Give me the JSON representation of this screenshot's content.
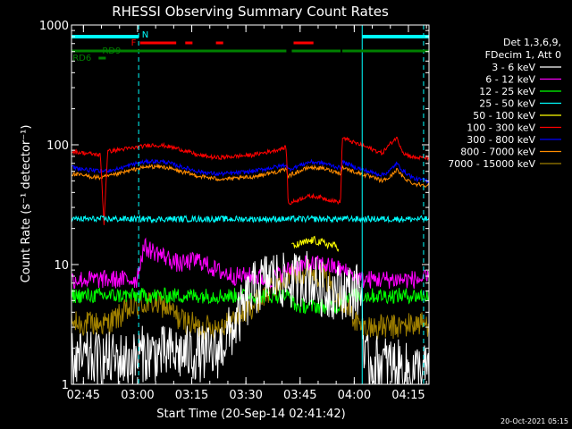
{
  "chart_data": {
    "type": "line",
    "title": "RHESSI Observing Summary Count Rates",
    "xlabel": "Start Time (20-Sep-14 02:41:42)",
    "ylabel": "Count Rate (s⁻¹ detector⁻¹)",
    "yscale": "log",
    "ylim": [
      1,
      1000
    ],
    "xlim_minutes": [
      0,
      99
    ],
    "x_ticks": [
      "02:45",
      "03:00",
      "03:15",
      "03:30",
      "03:45",
      "04:00",
      "04:15"
    ],
    "y_ticks": [
      "1",
      "10",
      "100",
      "1000"
    ],
    "legend_header": [
      "Det 1,3,6,9,",
      "FDecim 1, Att 0"
    ],
    "timestamp": "20-Oct-2021 05:15",
    "flags": {
      "N": {
        "label": "N",
        "color": "#00ffff",
        "segments": [
          [
            0,
            18.6
          ],
          [
            80.5,
            99
          ]
        ]
      },
      "F": {
        "label": "F",
        "color": "#ff0000",
        "segments": [
          [
            19,
            29
          ],
          [
            31.5,
            33.5
          ],
          [
            40,
            42
          ],
          [
            61.5,
            67
          ]
        ]
      },
      "RD6": {
        "label": "RD6",
        "color": "#008000",
        "segments": [
          [
            7.5,
            9.5
          ]
        ]
      },
      "RD9": {
        "label": "RD9",
        "color": "#008000",
        "segments": [
          [
            0,
            59.5
          ],
          [
            61,
            74.5
          ],
          [
            75,
            99
          ]
        ]
      }
    },
    "series": [
      {
        "name": "3 - 6 keV",
        "color": "#ffffff",
        "x": [
          0,
          18,
          18.6,
          40,
          45,
          50,
          55,
          60,
          65,
          70,
          80.5,
          81,
          88,
          92,
          99
        ],
        "y": [
          1.6,
          1.6,
          1.8,
          1.8,
          3,
          6,
          8,
          7,
          8,
          6,
          6,
          1.5,
          1.5,
          1.3,
          1.3
        ]
      },
      {
        "name": "6 - 12 keV",
        "color": "#ff00ff",
        "x": [
          0,
          10,
          18,
          20,
          25,
          30,
          35,
          40,
          45,
          50,
          55,
          60,
          65,
          70,
          75,
          80,
          85,
          90,
          95,
          99
        ],
        "y": [
          7.5,
          7.5,
          7.5,
          14,
          12,
          10,
          11,
          9,
          8,
          8,
          7.5,
          9,
          10,
          10,
          9,
          7.5,
          7.5,
          7.5,
          7.5,
          7.5
        ]
      },
      {
        "name": "12 - 25 keV",
        "color": "#00ff00",
        "x": [
          0,
          18,
          25,
          40,
          55,
          60,
          62,
          74,
          75,
          80,
          90,
          99
        ],
        "y": [
          5.5,
          5.5,
          5.5,
          5.5,
          5.5,
          5.5,
          4.5,
          4.5,
          5.5,
          5.5,
          5.5,
          5.5
        ]
      },
      {
        "name": "25 - 50 keV",
        "color": "#00ffff",
        "x": [
          0,
          8,
          10,
          20,
          30,
          40,
          50,
          60,
          70,
          75,
          80,
          90,
          99
        ],
        "y": [
          24,
          24,
          24,
          24,
          24,
          24,
          24,
          24,
          24,
          24,
          24,
          24,
          24
        ]
      },
      {
        "name": "50 - 100 keV",
        "color": "#ffff00",
        "x": [
          61,
          64,
          67,
          70,
          74
        ],
        "y": [
          14,
          15,
          16,
          15,
          14
        ]
      },
      {
        "name": "100 - 300 keV",
        "color": "#ff0000",
        "x": [
          0,
          4,
          8,
          9,
          10,
          12,
          18,
          22,
          26,
          30,
          35,
          40,
          45,
          50,
          55,
          59.5,
          60,
          62,
          65,
          68,
          71,
          74.5,
          75,
          78,
          82,
          86,
          88,
          90,
          92,
          95,
          99
        ],
        "y": [
          88,
          85,
          82,
          22,
          88,
          90,
          95,
          100,
          98,
          92,
          82,
          78,
          80,
          82,
          88,
          95,
          32,
          34,
          37,
          37,
          35,
          33,
          115,
          105,
          95,
          85,
          100,
          115,
          85,
          78,
          78
        ]
      },
      {
        "name": "300 - 800 keV",
        "color": "#0000ff",
        "x": [
          0,
          4,
          8,
          12,
          18,
          22,
          26,
          30,
          35,
          40,
          45,
          50,
          55,
          59.5,
          60,
          63,
          66,
          70,
          74.5,
          75,
          78,
          82,
          86,
          88,
          90,
          92,
          95,
          99
        ],
        "y": [
          65,
          62,
          60,
          62,
          70,
          73,
          72,
          66,
          60,
          57,
          58,
          60,
          64,
          68,
          62,
          67,
          72,
          70,
          64,
          72,
          66,
          60,
          56,
          60,
          70,
          60,
          52,
          50
        ]
      },
      {
        "name": "800 - 7000 keV",
        "color": "#ff8c00",
        "x": [
          0,
          4,
          8,
          12,
          18,
          22,
          26,
          30,
          35,
          40,
          45,
          50,
          55,
          59.5,
          60,
          63,
          66,
          70,
          74.5,
          75,
          78,
          82,
          86,
          88,
          90,
          92,
          95,
          99
        ],
        "y": [
          57,
          55,
          53,
          56,
          63,
          66,
          65,
          60,
          55,
          52,
          52,
          54,
          58,
          62,
          55,
          60,
          65,
          63,
          58,
          65,
          60,
          55,
          50,
          53,
          62,
          53,
          47,
          46
        ]
      },
      {
        "name": "7000 - 15000 keV",
        "color": "#a08000",
        "x": [
          0,
          10,
          15,
          18,
          22,
          26,
          30,
          35,
          40,
          45,
          50,
          55,
          60,
          65,
          70,
          75,
          80,
          85,
          90,
          95,
          99
        ],
        "y": [
          3.2,
          3.2,
          4,
          4.5,
          4.8,
          4.5,
          3.5,
          3,
          3,
          3.5,
          4.5,
          6,
          8,
          9,
          8,
          5,
          3,
          3,
          3,
          3.2,
          3.2
        ]
      }
    ]
  }
}
